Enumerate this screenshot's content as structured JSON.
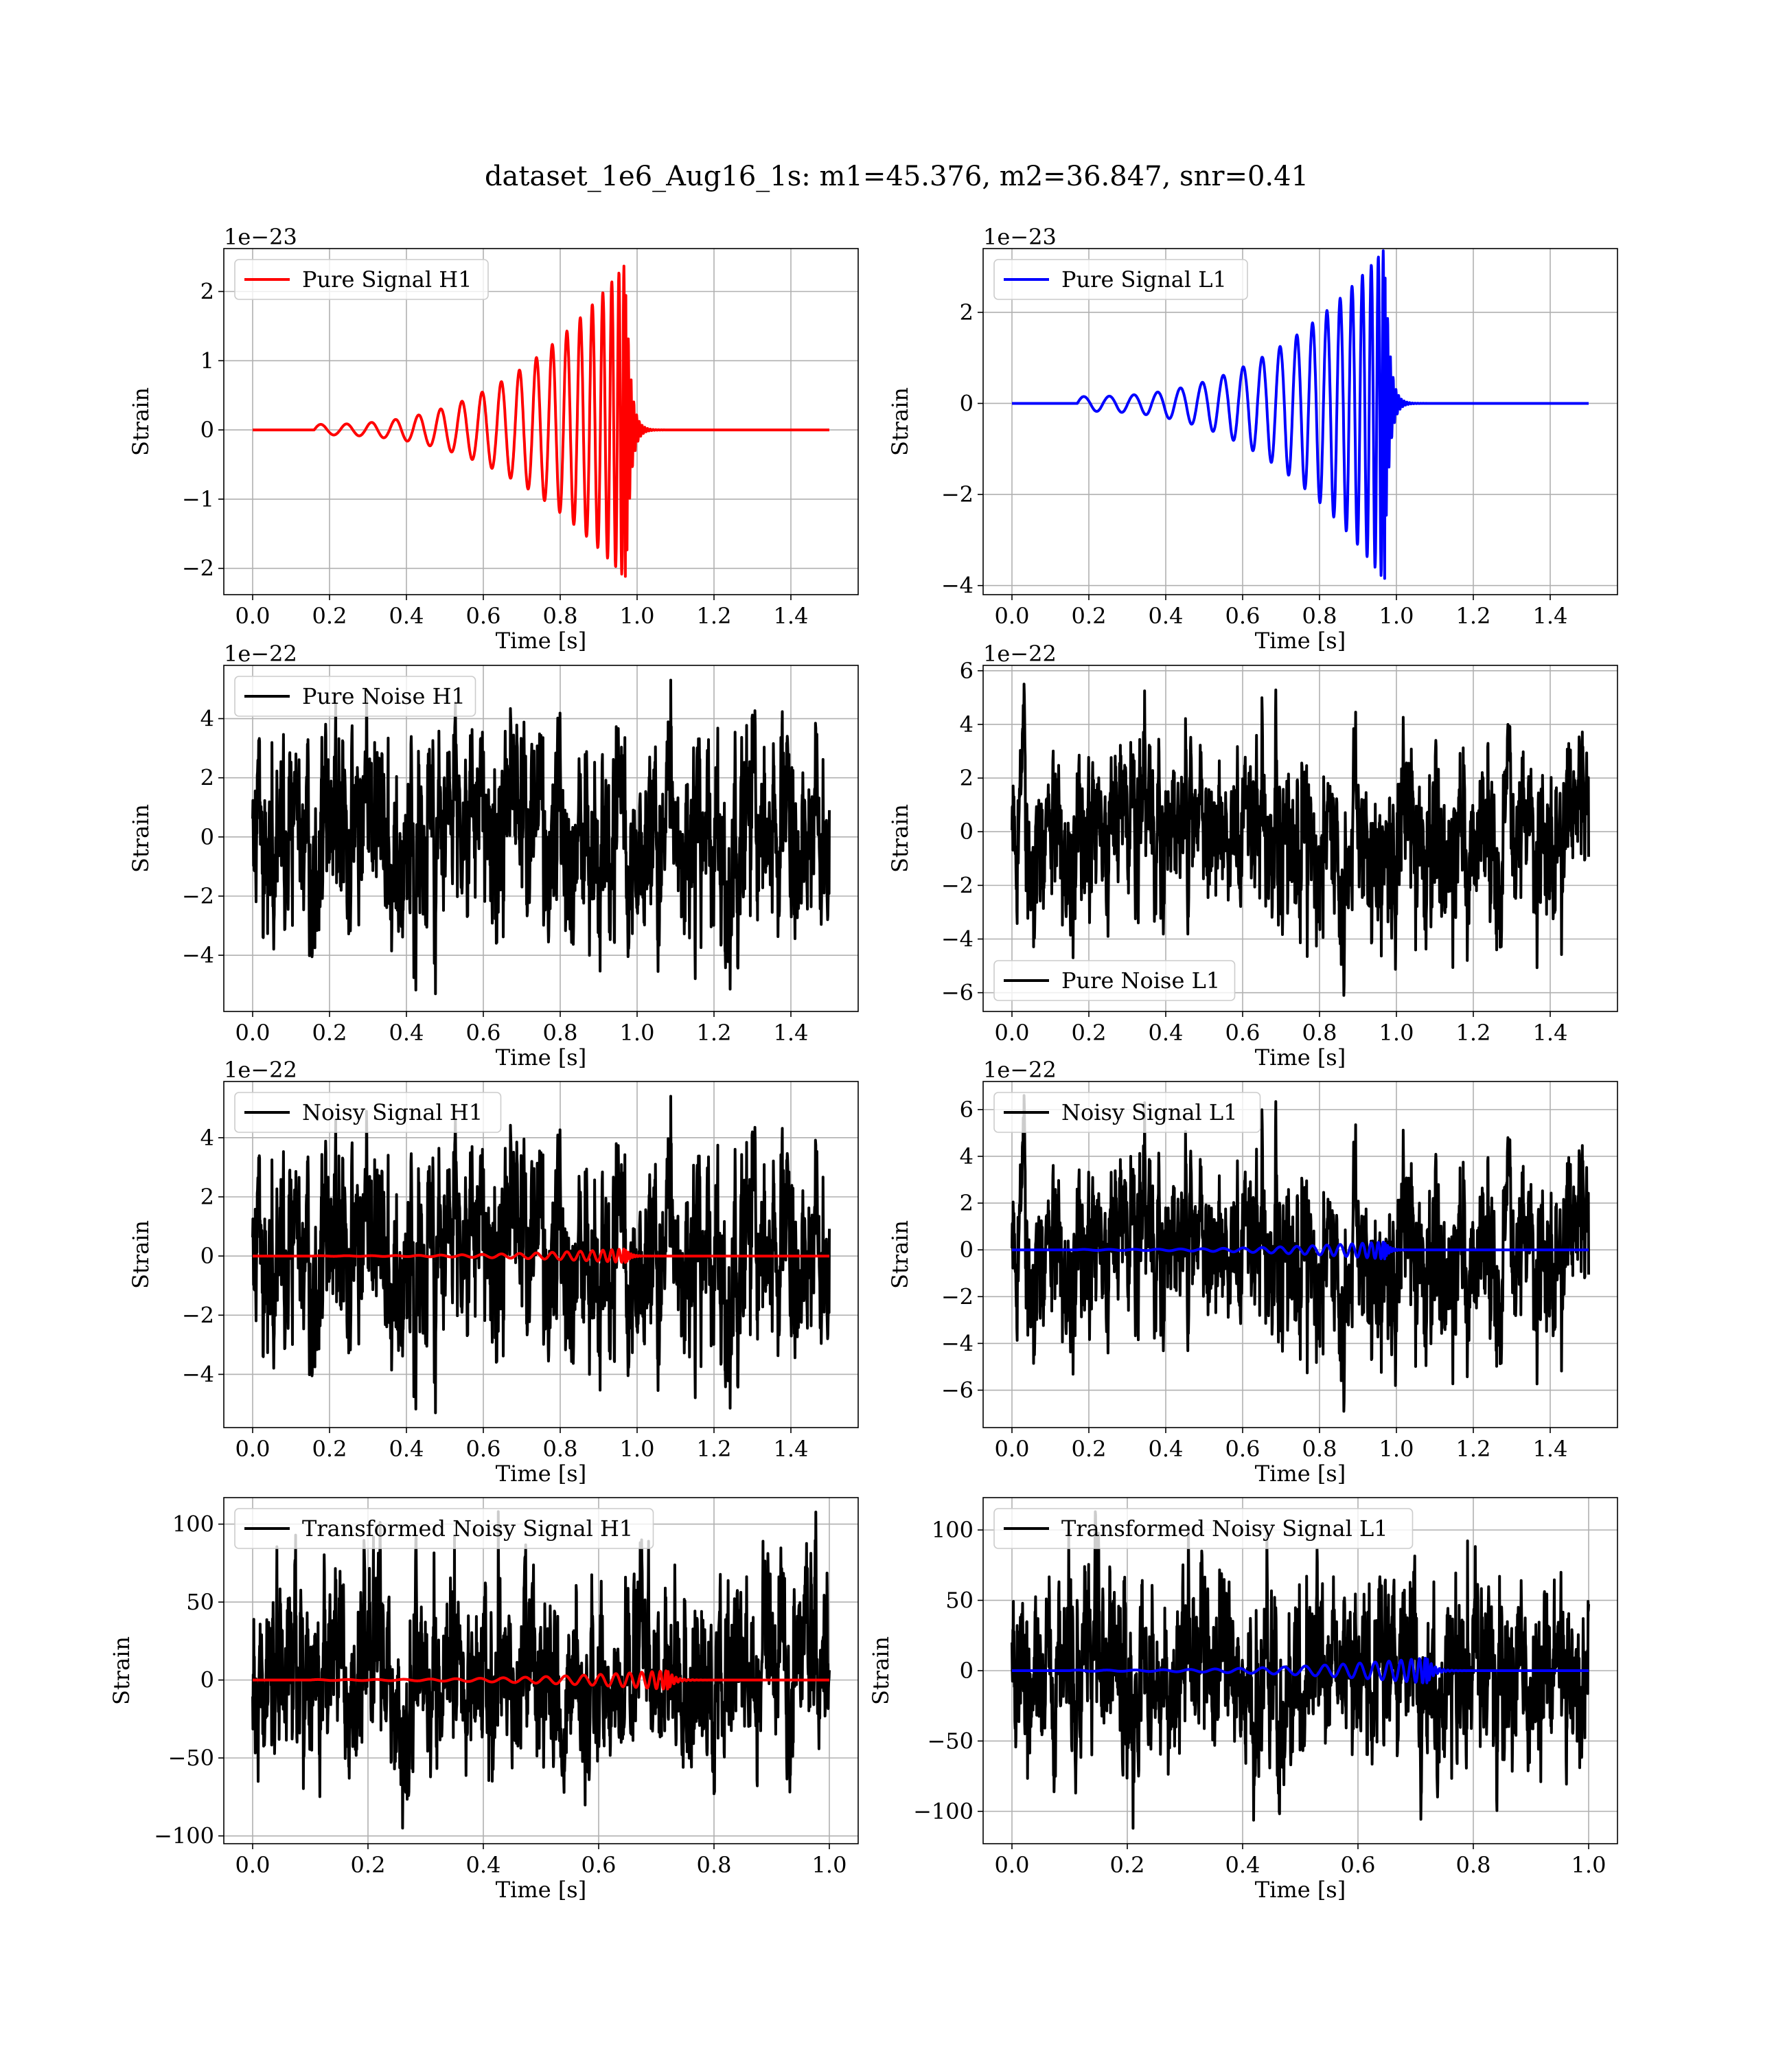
{
  "figure": {
    "title": "dataset_1e6_Aug16_1s: m1=45.376, m2=36.847, snr=0.41"
  },
  "colors": {
    "h1_signal": "#ff0000",
    "l1_signal": "#0000ff",
    "noise": "#000000"
  },
  "chart_data": [
    {
      "type": "line",
      "legend": "Pure Signal H1",
      "legend_position": "upper-left",
      "xlabel": "Time [s]",
      "ylabel": "Strain",
      "offset_text": "1e−23",
      "xlim": [
        -0.075,
        1.575
      ],
      "ylim": [
        -2.38,
        2.62
      ],
      "xticks": [
        0.0,
        0.2,
        0.4,
        0.6,
        0.8,
        1.0,
        1.2,
        1.4
      ],
      "xtick_labels": [
        "0.0",
        "0.2",
        "0.4",
        "0.6",
        "0.8",
        "1.0",
        "1.2",
        "1.4"
      ],
      "yticks": [
        -2,
        -1,
        0,
        1,
        2
      ],
      "ytick_labels": [
        "−2",
        "−1",
        "0",
        "1",
        "2"
      ],
      "grid": true,
      "series": [
        {
          "name": "Pure Signal H1",
          "color": "#ff0000",
          "kind": "chirp",
          "x_start": 0.0,
          "x_end": 1.5,
          "t_start": 0.16,
          "t_merger": 0.97,
          "amp_start": 0.08,
          "amp_peak": 2.4,
          "amp_trough": -2.15
        }
      ]
    },
    {
      "type": "line",
      "legend": "Pure Signal L1",
      "legend_position": "upper-left",
      "xlabel": "Time [s]",
      "ylabel": "Strain",
      "offset_text": "1e−23",
      "xlim": [
        -0.075,
        1.575
      ],
      "ylim": [
        -4.2,
        3.4
      ],
      "xticks": [
        0.0,
        0.2,
        0.4,
        0.6,
        0.8,
        1.0,
        1.2,
        1.4
      ],
      "xtick_labels": [
        "0.0",
        "0.2",
        "0.4",
        "0.6",
        "0.8",
        "1.0",
        "1.2",
        "1.4"
      ],
      "yticks": [
        -4,
        -2,
        0,
        2
      ],
      "ytick_labels": [
        "−4",
        "−2",
        "0",
        "2"
      ],
      "grid": true,
      "series": [
        {
          "name": "Pure Signal L1",
          "color": "#0000ff",
          "kind": "chirp",
          "x_start": 0.0,
          "x_end": 1.5,
          "t_start": 0.17,
          "t_merger": 0.97,
          "amp_start": 0.15,
          "amp_peak": 3.4,
          "amp_trough": -3.9
        }
      ]
    },
    {
      "type": "line",
      "legend": "Pure Noise H1",
      "legend_position": "upper-left",
      "xlabel": "Time [s]",
      "ylabel": "Strain",
      "offset_text": "1e−22",
      "xlim": [
        -0.075,
        1.575
      ],
      "ylim": [
        -5.9,
        5.8
      ],
      "xticks": [
        0.0,
        0.2,
        0.4,
        0.6,
        0.8,
        1.0,
        1.2,
        1.4
      ],
      "xtick_labels": [
        "0.0",
        "0.2",
        "0.4",
        "0.6",
        "0.8",
        "1.0",
        "1.2",
        "1.4"
      ],
      "yticks": [
        -4,
        -2,
        0,
        2,
        4
      ],
      "ytick_labels": [
        "−4",
        "−2",
        "0",
        "2",
        "4"
      ],
      "grid": true,
      "series": [
        {
          "name": "Pure Noise H1",
          "color": "#000000",
          "kind": "noise",
          "x_start": 0.0,
          "x_end": 1.5,
          "y_max": 5.3,
          "y_min": -5.3,
          "seed": 11
        }
      ]
    },
    {
      "type": "line",
      "legend": "Pure Noise L1",
      "legend_position": "lower-left",
      "xlabel": "Time [s]",
      "ylabel": "Strain",
      "offset_text": "1e−22",
      "xlim": [
        -0.075,
        1.575
      ],
      "ylim": [
        -6.7,
        6.2
      ],
      "xticks": [
        0.0,
        0.2,
        0.4,
        0.6,
        0.8,
        1.0,
        1.2,
        1.4
      ],
      "xtick_labels": [
        "0.0",
        "0.2",
        "0.4",
        "0.6",
        "0.8",
        "1.0",
        "1.2",
        "1.4"
      ],
      "yticks": [
        -6,
        -4,
        -2,
        0,
        2,
        4,
        6
      ],
      "ytick_labels": [
        "−6",
        "−4",
        "−2",
        "0",
        "2",
        "4",
        "6"
      ],
      "grid": true,
      "series": [
        {
          "name": "Pure Noise L1",
          "color": "#000000",
          "kind": "noise",
          "x_start": 0.0,
          "x_end": 1.5,
          "y_max": 5.5,
          "y_min": -6.1,
          "seed": 23
        }
      ]
    },
    {
      "type": "line",
      "legend": "Noisy Signal H1",
      "legend_position": "upper-left",
      "xlabel": "Time [s]",
      "ylabel": "Strain",
      "offset_text": "1e−22",
      "xlim": [
        -0.075,
        1.575
      ],
      "ylim": [
        -5.8,
        5.9
      ],
      "xticks": [
        0.0,
        0.2,
        0.4,
        0.6,
        0.8,
        1.0,
        1.2,
        1.4
      ],
      "xtick_labels": [
        "0.0",
        "0.2",
        "0.4",
        "0.6",
        "0.8",
        "1.0",
        "1.2",
        "1.4"
      ],
      "yticks": [
        -4,
        -2,
        0,
        2,
        4
      ],
      "ytick_labels": [
        "−4",
        "−2",
        "0",
        "2",
        "4"
      ],
      "grid": true,
      "series": [
        {
          "name": "Noisy Signal H1",
          "color": "#000000",
          "kind": "noise",
          "x_start": 0.0,
          "x_end": 1.5,
          "y_max": 5.4,
          "y_min": -5.3,
          "seed": 11
        },
        {
          "color": "#ff0000",
          "kind": "chirp",
          "x_start": 0.0,
          "x_end": 1.5,
          "t_start": 0.16,
          "t_merger": 0.97,
          "amp_start": 0.01,
          "amp_peak": 0.24,
          "amp_trough": -0.22
        }
      ]
    },
    {
      "type": "line",
      "legend": "Noisy Signal L1",
      "legend_position": "upper-left",
      "xlabel": "Time [s]",
      "ylabel": "Strain",
      "offset_text": "1e−22",
      "xlim": [
        -0.075,
        1.575
      ],
      "ylim": [
        -7.6,
        7.2
      ],
      "xticks": [
        0.0,
        0.2,
        0.4,
        0.6,
        0.8,
        1.0,
        1.2,
        1.4
      ],
      "xtick_labels": [
        "0.0",
        "0.2",
        "0.4",
        "0.6",
        "0.8",
        "1.0",
        "1.2",
        "1.4"
      ],
      "yticks": [
        -6,
        -4,
        -2,
        0,
        2,
        4,
        6
      ],
      "ytick_labels": [
        "−6",
        "−4",
        "−2",
        "0",
        "2",
        "4",
        "6"
      ],
      "grid": true,
      "series": [
        {
          "name": "Noisy Signal L1",
          "color": "#000000",
          "kind": "noise",
          "x_start": 0.0,
          "x_end": 1.5,
          "y_max": 6.6,
          "y_min": -6.9,
          "seed": 23
        },
        {
          "color": "#0000ff",
          "kind": "chirp",
          "x_start": 0.0,
          "x_end": 1.5,
          "t_start": 0.17,
          "t_merger": 0.97,
          "amp_start": 0.02,
          "amp_peak": 0.34,
          "amp_trough": -0.39
        }
      ]
    },
    {
      "type": "line",
      "legend": "Transformed Noisy Signal H1",
      "legend_position": "upper-left",
      "xlabel": "Time [s]",
      "ylabel": "Strain",
      "offset_text": "",
      "xlim": [
        -0.05,
        1.05
      ],
      "ylim": [
        -105,
        117
      ],
      "xticks": [
        0.0,
        0.2,
        0.4,
        0.6,
        0.8,
        1.0
      ],
      "xtick_labels": [
        "0.0",
        "0.2",
        "0.4",
        "0.6",
        "0.8",
        "1.0"
      ],
      "yticks": [
        -100,
        -50,
        0,
        50,
        100
      ],
      "ytick_labels": [
        "−100",
        "−50",
        "0",
        "50",
        "100"
      ],
      "grid": true,
      "series": [
        {
          "name": "Transformed Noisy Signal H1",
          "color": "#000000",
          "kind": "noise",
          "x_start": 0.0,
          "x_end": 1.0,
          "y_max": 108,
          "y_min": -95,
          "seed": 37
        },
        {
          "color": "#ff0000",
          "kind": "chirp",
          "x_start": 0.0,
          "x_end": 1.0,
          "t_start": 0.1,
          "t_merger": 0.72,
          "amp_start": 0.3,
          "amp_peak": 6,
          "amp_trough": -6
        }
      ]
    },
    {
      "type": "line",
      "legend": "Transformed Noisy Signal L1",
      "legend_position": "upper-left",
      "xlabel": "Time [s]",
      "ylabel": "Strain",
      "offset_text": "",
      "xlim": [
        -0.05,
        1.05
      ],
      "ylim": [
        -123,
        123
      ],
      "xticks": [
        0.0,
        0.2,
        0.4,
        0.6,
        0.8,
        1.0
      ],
      "xtick_labels": [
        "0.0",
        "0.2",
        "0.4",
        "0.6",
        "0.8",
        "1.0"
      ],
      "yticks": [
        -100,
        -50,
        0,
        50,
        100
      ],
      "ytick_labels": [
        "−100",
        "−50",
        "0",
        "50",
        "100"
      ],
      "grid": true,
      "series": [
        {
          "name": "Transformed Noisy Signal L1",
          "color": "#000000",
          "kind": "noise",
          "x_start": 0.0,
          "x_end": 1.0,
          "y_max": 113,
          "y_min": -112,
          "seed": 41
        },
        {
          "color": "#0000ff",
          "kind": "chirp",
          "x_start": 0.0,
          "x_end": 1.0,
          "t_start": 0.1,
          "t_merger": 0.72,
          "amp_start": 0.4,
          "amp_peak": 9,
          "amp_trough": -9
        }
      ]
    }
  ]
}
